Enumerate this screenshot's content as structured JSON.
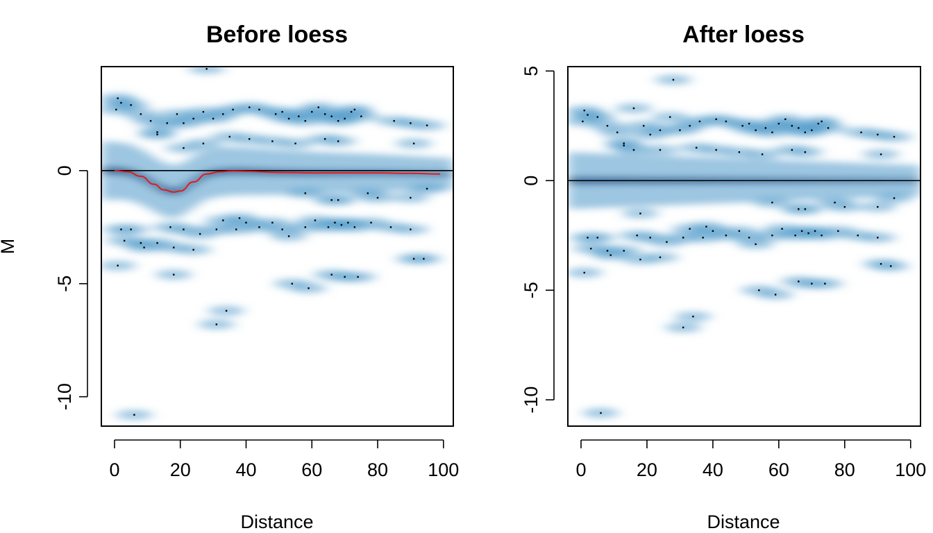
{
  "chart_data": [
    {
      "type": "scatter",
      "style": "smoothScatter density",
      "title": "Before loess",
      "xlabel": "Distance",
      "ylabel": "M",
      "xlim": [
        -4,
        103
      ],
      "ylim": [
        -11.3,
        4.6
      ],
      "xticks": [
        0,
        20,
        40,
        60,
        80,
        100
      ],
      "yticks": [
        -10,
        -5,
        0
      ],
      "hline": 0,
      "loess_curve": {
        "x": [
          0,
          4,
          8,
          12,
          15,
          18,
          20,
          24,
          28,
          32,
          36,
          40,
          50,
          60,
          70,
          80,
          90,
          99
        ],
        "y": [
          0,
          -0.05,
          -0.25,
          -0.6,
          -0.85,
          -0.95,
          -0.9,
          -0.5,
          -0.15,
          -0.05,
          -0.02,
          -0.03,
          -0.08,
          -0.1,
          -0.1,
          -0.1,
          -0.12,
          -0.15
        ]
      },
      "points": [
        [
          0.5,
          2.7
        ],
        [
          1,
          3.2
        ],
        [
          2,
          3
        ],
        [
          5,
          2.9
        ],
        [
          8,
          2.5
        ],
        [
          11,
          2.2
        ],
        [
          13,
          1.7
        ],
        [
          16,
          2.1
        ],
        [
          19,
          2.5
        ],
        [
          21,
          2.1
        ],
        [
          24,
          2.3
        ],
        [
          27,
          2.6
        ],
        [
          30,
          2.3
        ],
        [
          33,
          2.5
        ],
        [
          36,
          2.7
        ],
        [
          41,
          2.8
        ],
        [
          44,
          2.7
        ],
        [
          49,
          2.5
        ],
        [
          51,
          2.6
        ],
        [
          53,
          2.3
        ],
        [
          56,
          2.4
        ],
        [
          58,
          2.2
        ],
        [
          60,
          2.6
        ],
        [
          62,
          2.8
        ],
        [
          64,
          2.5
        ],
        [
          66,
          2.4
        ],
        [
          68,
          2.2
        ],
        [
          70,
          2.3
        ],
        [
          72,
          2.6
        ],
        [
          73,
          2.7
        ],
        [
          75,
          2.4
        ],
        [
          85,
          2.2
        ],
        [
          90,
          2.1
        ],
        [
          95,
          2.0
        ],
        [
          13,
          1.6
        ],
        [
          21,
          1.0
        ],
        [
          27,
          1.2
        ],
        [
          35,
          1.5
        ],
        [
          41,
          1.4
        ],
        [
          48,
          1.3
        ],
        [
          55,
          1.2
        ],
        [
          64,
          1.4
        ],
        [
          68,
          1.3
        ],
        [
          91,
          1.2
        ],
        [
          2,
          -2.6
        ],
        [
          3,
          -3.1
        ],
        [
          5,
          -2.6
        ],
        [
          8,
          -3.2
        ],
        [
          9,
          -3.4
        ],
        [
          13,
          -3.2
        ],
        [
          17,
          -2.5
        ],
        [
          18,
          -3.4
        ],
        [
          21,
          -2.6
        ],
        [
          24,
          -3.5
        ],
        [
          26,
          -2.8
        ],
        [
          31,
          -2.6
        ],
        [
          33,
          -2.2
        ],
        [
          37,
          -2.6
        ],
        [
          38,
          -2.1
        ],
        [
          40,
          -2.3
        ],
        [
          44,
          -2.5
        ],
        [
          48,
          -2.3
        ],
        [
          51,
          -2.6
        ],
        [
          53,
          -2.9
        ],
        [
          58,
          -2.5
        ],
        [
          61,
          -2.2
        ],
        [
          65,
          -2.5
        ],
        [
          67,
          -2.3
        ],
        [
          69,
          -2.4
        ],
        [
          71,
          -2.3
        ],
        [
          73,
          -2.5
        ],
        [
          78,
          -2.3
        ],
        [
          84,
          -2.5
        ],
        [
          90,
          -2.6
        ],
        [
          58,
          -1.0
        ],
        [
          66,
          -1.3
        ],
        [
          68,
          -1.3
        ],
        [
          77,
          -1.0
        ],
        [
          80,
          -1.2
        ],
        [
          90,
          -1.2
        ],
        [
          95,
          -0.8
        ],
        [
          1,
          -4.2
        ],
        [
          18,
          -4.6
        ],
        [
          91,
          -3.9
        ],
        [
          94,
          -3.9
        ],
        [
          54,
          -5.0
        ],
        [
          59,
          -5.2
        ],
        [
          66,
          -4.6
        ],
        [
          70,
          -4.7
        ],
        [
          74,
          -4.7
        ],
        [
          34,
          -6.2
        ],
        [
          31,
          -6.8
        ],
        [
          6,
          -10.8
        ],
        [
          28,
          4.5
        ]
      ]
    },
    {
      "type": "scatter",
      "style": "smoothScatter density",
      "title": "After loess",
      "xlabel": "Distance",
      "ylabel": "",
      "xlim": [
        -4,
        103
      ],
      "ylim": [
        -11.2,
        5.2
      ],
      "xticks": [
        0,
        20,
        40,
        60,
        80,
        100
      ],
      "yticks": [
        -10,
        -5,
        0,
        5
      ],
      "hline": 0,
      "points": [
        [
          0.5,
          2.7
        ],
        [
          1,
          3.2
        ],
        [
          2,
          3
        ],
        [
          5,
          2.9
        ],
        [
          8,
          2.5
        ],
        [
          11,
          2.2
        ],
        [
          13,
          1.7
        ],
        [
          16,
          3.3
        ],
        [
          19,
          2.5
        ],
        [
          21,
          2.1
        ],
        [
          24,
          2.3
        ],
        [
          27,
          2.9
        ],
        [
          30,
          2.3
        ],
        [
          33,
          2.5
        ],
        [
          36,
          2.7
        ],
        [
          41,
          2.8
        ],
        [
          44,
          2.7
        ],
        [
          49,
          2.5
        ],
        [
          51,
          2.6
        ],
        [
          53,
          2.3
        ],
        [
          56,
          2.4
        ],
        [
          58,
          2.2
        ],
        [
          60,
          2.6
        ],
        [
          62,
          2.8
        ],
        [
          64,
          2.5
        ],
        [
          66,
          2.4
        ],
        [
          68,
          2.2
        ],
        [
          70,
          2.3
        ],
        [
          72,
          2.6
        ],
        [
          73,
          2.7
        ],
        [
          75,
          2.4
        ],
        [
          85,
          2.2
        ],
        [
          90,
          2.1
        ],
        [
          95,
          2.0
        ],
        [
          13,
          1.6
        ],
        [
          16,
          1.4
        ],
        [
          24,
          1.4
        ],
        [
          35,
          1.5
        ],
        [
          41,
          1.4
        ],
        [
          48,
          1.3
        ],
        [
          55,
          1.2
        ],
        [
          64,
          1.4
        ],
        [
          68,
          1.3
        ],
        [
          91,
          1.2
        ],
        [
          2,
          -2.6
        ],
        [
          3,
          -3.1
        ],
        [
          5,
          -2.6
        ],
        [
          8,
          -3.2
        ],
        [
          9,
          -3.4
        ],
        [
          13,
          -3.2
        ],
        [
          17,
          -2.5
        ],
        [
          18,
          -1.5
        ],
        [
          21,
          -2.6
        ],
        [
          24,
          -3.5
        ],
        [
          26,
          -2.8
        ],
        [
          31,
          -2.6
        ],
        [
          33,
          -2.2
        ],
        [
          37,
          -2.6
        ],
        [
          38,
          -2.1
        ],
        [
          40,
          -2.3
        ],
        [
          44,
          -2.5
        ],
        [
          48,
          -2.3
        ],
        [
          51,
          -2.6
        ],
        [
          53,
          -2.9
        ],
        [
          58,
          -2.5
        ],
        [
          61,
          -2.2
        ],
        [
          65,
          -2.5
        ],
        [
          67,
          -2.3
        ],
        [
          69,
          -2.4
        ],
        [
          71,
          -2.3
        ],
        [
          73,
          -2.5
        ],
        [
          78,
          -2.3
        ],
        [
          84,
          -2.5
        ],
        [
          90,
          -2.6
        ],
        [
          58,
          -1.0
        ],
        [
          66,
          -1.3
        ],
        [
          68,
          -1.3
        ],
        [
          77,
          -1.0
        ],
        [
          80,
          -1.2
        ],
        [
          90,
          -1.2
        ],
        [
          95,
          -0.8
        ],
        [
          1,
          -4.2
        ],
        [
          18,
          -3.6
        ],
        [
          91,
          -3.8
        ],
        [
          94,
          -3.9
        ],
        [
          54,
          -5.0
        ],
        [
          59,
          -5.2
        ],
        [
          66,
          -4.6
        ],
        [
          70,
          -4.7
        ],
        [
          74,
          -4.7
        ],
        [
          34,
          -6.2
        ],
        [
          31,
          -6.7
        ],
        [
          6,
          -10.6
        ],
        [
          28,
          4.6
        ]
      ]
    }
  ],
  "colors": {
    "density_low": "#f7fbff",
    "density_mid": "#4b97c9",
    "density_high": "#08306b",
    "loess_curve": "#e41a1c",
    "hline": "#000000",
    "points": "#000000"
  }
}
